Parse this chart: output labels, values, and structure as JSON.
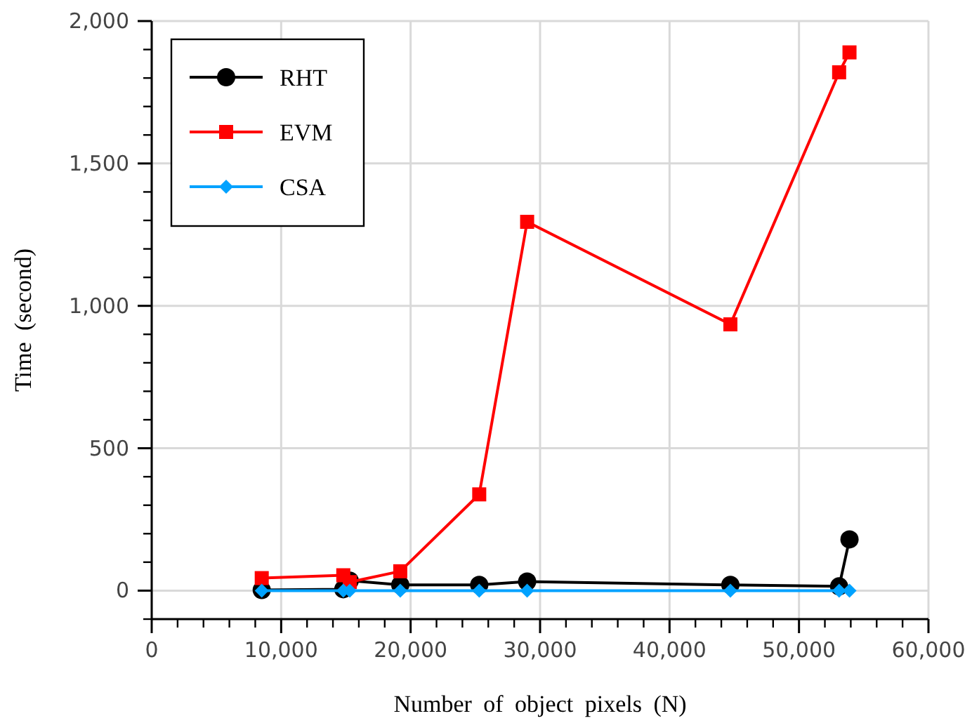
{
  "chart_data": {
    "type": "line",
    "xlabel": "Number of object pixels (N)",
    "ylabel": "Time (second)",
    "x": [
      8500,
      14800,
      15300,
      19200,
      25300,
      29000,
      44700,
      53100,
      53900
    ],
    "series": [
      {
        "name": "RHT",
        "color": "#000000",
        "marker": "circle",
        "values": [
          2,
          5,
          35,
          20,
          20,
          32,
          20,
          15,
          180
        ]
      },
      {
        "name": "EVM",
        "color": "#ff0000",
        "marker": "square",
        "values": [
          44,
          54,
          30,
          68,
          338,
          1295,
          935,
          1820,
          1890
        ]
      },
      {
        "name": "CSA",
        "color": "#00a2ff",
        "marker": "diamond",
        "values": [
          0,
          0,
          0,
          0,
          0,
          0,
          0,
          0,
          0
        ]
      }
    ],
    "xlim": [
      0,
      60000
    ],
    "xticks": [
      {
        "value": 0,
        "label": "0"
      },
      {
        "value": 10000,
        "label": "10,000"
      },
      {
        "value": 20000,
        "label": "20,000"
      },
      {
        "value": 30000,
        "label": "30,000"
      },
      {
        "value": 40000,
        "label": "40,000"
      },
      {
        "value": 50000,
        "label": "50,000"
      },
      {
        "value": 60000,
        "label": "60,000"
      }
    ],
    "ylim": [
      -100,
      2000
    ],
    "yticks": [
      {
        "value": 0,
        "label": "0"
      },
      {
        "value": 500,
        "label": "500"
      },
      {
        "value": 1000,
        "label": "1,000"
      },
      {
        "value": 1500,
        "label": "1,500"
      },
      {
        "value": 2000,
        "label": "2,000"
      }
    ],
    "grid": true,
    "legend": "top left"
  }
}
